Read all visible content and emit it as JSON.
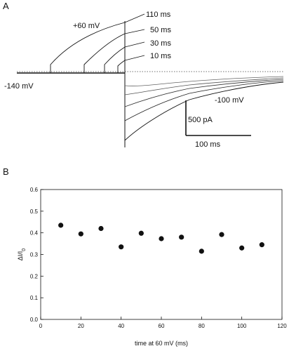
{
  "panel_a": {
    "label": "A",
    "labels": {
      "plus60": "+60 mV",
      "t110": "110 ms",
      "t50": "50 ms",
      "t30": "30 ms",
      "t10": "10 ms",
      "minus140": "-140 mV",
      "minus100": "-100 mV"
    },
    "scalebar": {
      "current_label": "500 pA",
      "time_label": "100 ms"
    }
  },
  "panel_b": {
    "label": "B"
  },
  "chart_data": {
    "type": "scatter",
    "xlabel": "time at 60 mV (ms)",
    "ylabel": "ΔI/I0",
    "xlim": [
      0,
      120
    ],
    "ylim": [
      0,
      0.6
    ],
    "x_ticks": [
      0,
      20,
      40,
      60,
      80,
      100,
      120
    ],
    "y_ticks": [
      0.0,
      0.1,
      0.2,
      0.3,
      0.4,
      0.5,
      0.6
    ],
    "series": [
      {
        "x": [
          10,
          20,
          30,
          40,
          50,
          60,
          70,
          80,
          90,
          100,
          110
        ],
        "y": [
          0.435,
          0.395,
          0.42,
          0.335,
          0.398,
          0.373,
          0.38,
          0.315,
          0.392,
          0.33,
          0.345
        ]
      }
    ],
    "marker": "filled-circle",
    "color": "#111111"
  }
}
